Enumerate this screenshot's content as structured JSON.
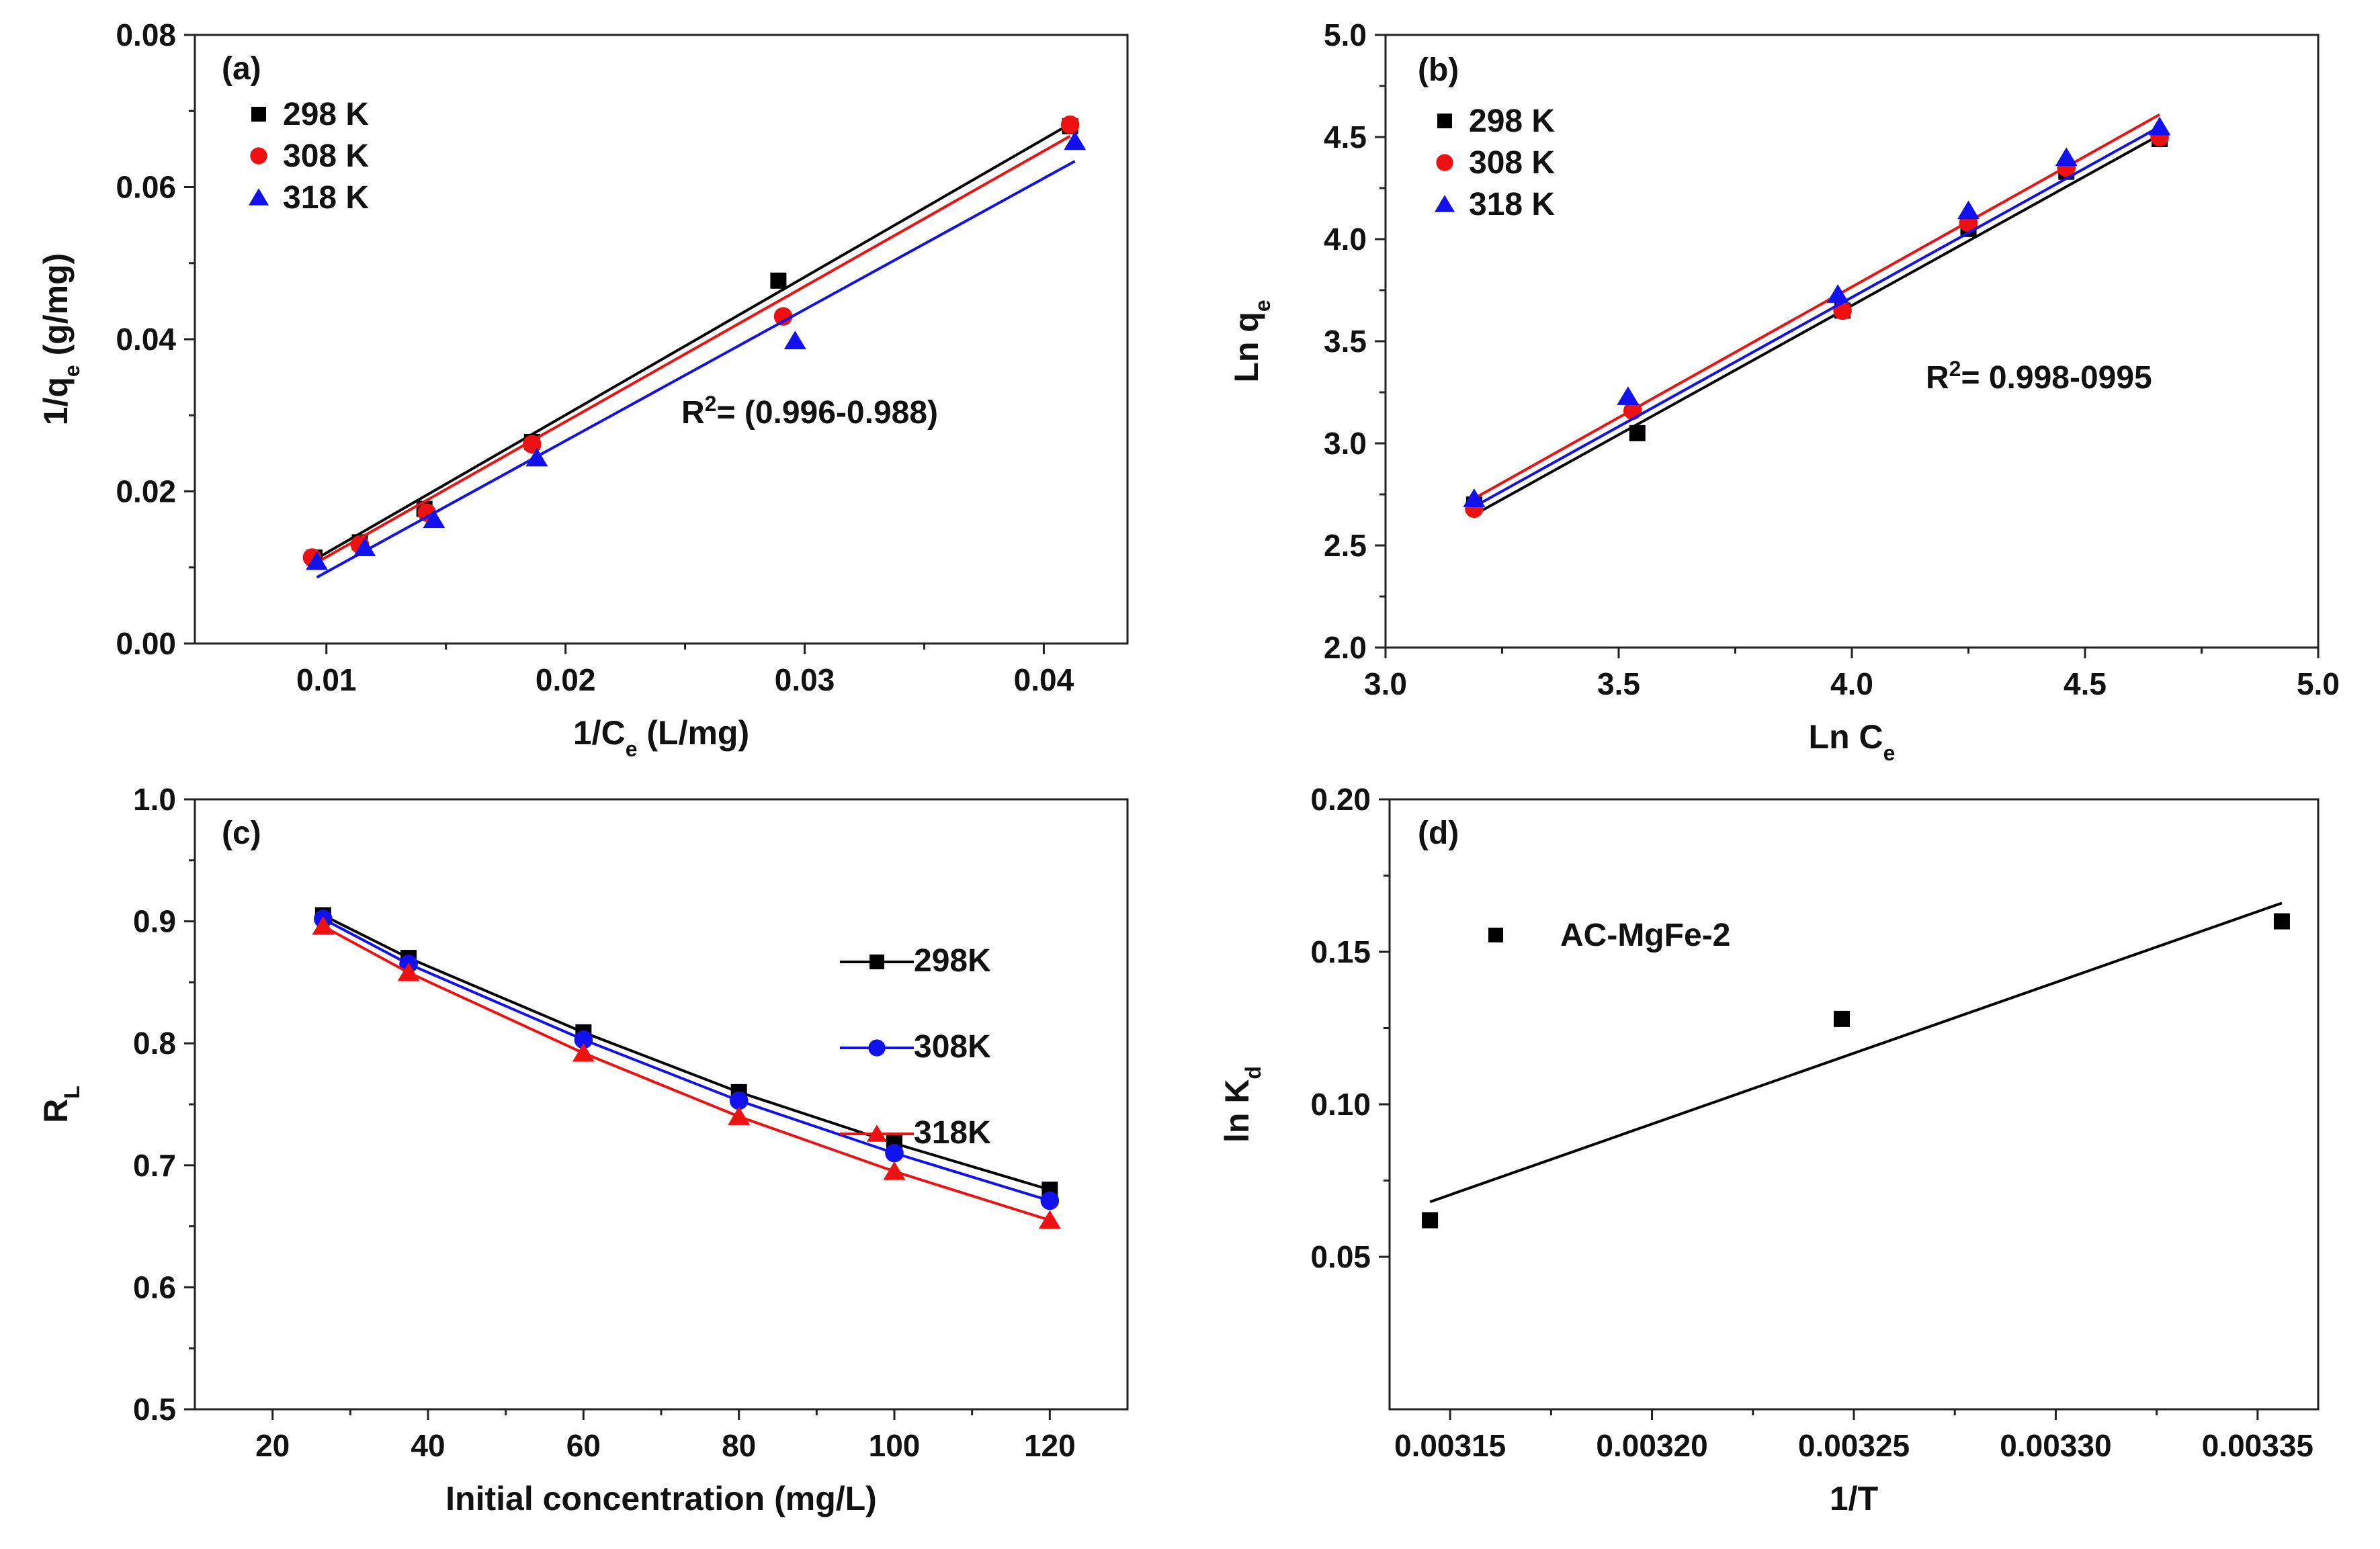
{
  "chart_data": [
    {
      "panel": "(a)",
      "type": "scatter",
      "xlabel": "1/C",
      "xlabel_sub": "e",
      "xlabel_rest": " (L/mg)",
      "ylabel": "1/q",
      "ylabel_sub": "e",
      "ylabel_rest": " (g/mg)",
      "xlim": [
        0.0045,
        0.0435
      ],
      "ylim": [
        0.0,
        0.08
      ],
      "xticks": [
        0.01,
        0.02,
        0.03,
        0.04
      ],
      "xtick_labels": [
        "0.01",
        "0.02",
        "0.03",
        "0.04"
      ],
      "yticks": [
        0.0,
        0.02,
        0.04,
        0.06,
        0.08
      ],
      "ytick_labels": [
        "0.00",
        "0.02",
        "0.04",
        "0.06",
        "0.08"
      ],
      "legend_position": "top-left",
      "annotation": {
        "prefix": "R",
        "sup": "2",
        "rest": "= (0.996-0.988)"
      },
      "series": [
        {
          "name": "298 K",
          "marker": "square",
          "color": "#000000",
          "x": [
            0.0095,
            0.0114,
            0.0141,
            0.0186,
            0.0289,
            0.0411
          ],
          "y": [
            0.0113,
            0.0133,
            0.0177,
            0.0265,
            0.0477,
            0.068
          ],
          "fit": [
            [
              0.0095,
              0.011
            ],
            [
              0.0411,
              0.0683
            ]
          ]
        },
        {
          "name": "308 K",
          "marker": "circle",
          "color": "#ee1111",
          "x": [
            0.0094,
            0.0114,
            0.0142,
            0.0186,
            0.0291,
            0.0411
          ],
          "y": [
            0.0113,
            0.013,
            0.0172,
            0.0262,
            0.043,
            0.0682
          ],
          "fit": [
            [
              0.0094,
              0.0103
            ],
            [
              0.0411,
              0.0667
            ]
          ]
        },
        {
          "name": "318 K",
          "marker": "triangle",
          "color": "#1111ee",
          "x": [
            0.0096,
            0.0116,
            0.0145,
            0.0188,
            0.0296,
            0.0413
          ],
          "y": [
            0.0108,
            0.0126,
            0.0163,
            0.0244,
            0.0398,
            0.066
          ],
          "fit": [
            [
              0.0096,
              0.0087
            ],
            [
              0.0413,
              0.0634
            ]
          ]
        }
      ]
    },
    {
      "panel": "(b)",
      "type": "scatter",
      "xlabel": "Ln C",
      "xlabel_sub": "e",
      "xlabel_rest": "",
      "ylabel": "Ln q",
      "ylabel_sub": "e",
      "ylabel_rest": "",
      "xlim": [
        3.0,
        5.0
      ],
      "ylim": [
        2.0,
        5.0
      ],
      "xticks": [
        3.0,
        3.5,
        4.0,
        4.5,
        5.0
      ],
      "xtick_labels": [
        "3.0",
        "3.5",
        "4.0",
        "4.5",
        "5.0"
      ],
      "yticks": [
        2.0,
        2.5,
        3.0,
        3.5,
        4.0,
        4.5,
        5.0
      ],
      "ytick_labels": [
        "2.0",
        "2.5",
        "3.0",
        "3.5",
        "4.0",
        "4.5",
        "5.0"
      ],
      "legend_position": "top-left",
      "annotation": {
        "prefix": "R",
        "sup": "2",
        "rest": "= 0.998-0995"
      },
      "series": [
        {
          "name": "298 K",
          "marker": "square",
          "color": "#000000",
          "x": [
            3.19,
            3.54,
            3.98,
            4.25,
            4.46,
            4.66
          ],
          "y": [
            2.7,
            3.05,
            3.65,
            4.05,
            4.33,
            4.49
          ],
          "fit": [
            [
              3.19,
              2.65
            ],
            [
              4.66,
              4.51
            ]
          ]
        },
        {
          "name": "308 K",
          "marker": "circle",
          "color": "#ee1111",
          "x": [
            3.19,
            3.53,
            3.98,
            4.25,
            4.46,
            4.66
          ],
          "y": [
            2.68,
            3.16,
            3.65,
            4.08,
            4.35,
            4.5
          ],
          "fit": [
            [
              3.19,
              2.73
            ],
            [
              4.66,
              4.61
            ]
          ]
        },
        {
          "name": "318 K",
          "marker": "triangle",
          "color": "#1111ee",
          "x": [
            3.19,
            3.52,
            3.97,
            4.25,
            4.46,
            4.66
          ],
          "y": [
            2.73,
            3.23,
            3.73,
            4.14,
            4.4,
            4.55
          ],
          "fit": [
            [
              3.19,
              2.69
            ],
            [
              4.66,
              4.55
            ]
          ]
        }
      ]
    },
    {
      "panel": "(c)",
      "type": "line",
      "xlabel": "Initial concentration (mg/L)",
      "xlabel_sub": "",
      "xlabel_rest": "",
      "ylabel": "R",
      "ylabel_sub": "L",
      "ylabel_rest": "",
      "xlim": [
        10,
        130
      ],
      "ylim": [
        0.5,
        1.0
      ],
      "xticks": [
        20,
        40,
        60,
        80,
        100,
        120
      ],
      "xtick_labels": [
        "20",
        "40",
        "60",
        "80",
        "100",
        "120"
      ],
      "yticks": [
        0.5,
        0.6,
        0.7,
        0.8,
        0.9,
        1.0
      ],
      "ytick_labels": [
        "0.5",
        "0.6",
        "0.7",
        "0.8",
        "0.9",
        "1.0"
      ],
      "legend_position": "right",
      "series": [
        {
          "name": "298K",
          "marker": "square",
          "color": "#000000",
          "x": [
            26.5,
            37.5,
            60,
            80,
            100,
            120
          ],
          "y": [
            0.905,
            0.87,
            0.809,
            0.76,
            0.718,
            0.68
          ]
        },
        {
          "name": "308K",
          "marker": "circle",
          "color": "#1111ee",
          "x": [
            26.5,
            37.5,
            60,
            80,
            100,
            120
          ],
          "y": [
            0.902,
            0.865,
            0.803,
            0.753,
            0.71,
            0.671
          ]
        },
        {
          "name": "318K",
          "marker": "triangle",
          "color": "#ee1111",
          "x": [
            26.5,
            37.5,
            60,
            80,
            100,
            120
          ],
          "y": [
            0.896,
            0.858,
            0.792,
            0.74,
            0.695,
            0.655
          ]
        }
      ]
    },
    {
      "panel": "(d)",
      "type": "scatter",
      "xlabel": "1/T",
      "xlabel_sub": "",
      "xlabel_rest": "",
      "ylabel": "ln K",
      "ylabel_sub": "d",
      "ylabel_rest": "",
      "xlim": [
        0.003135,
        0.003365
      ],
      "ylim": [
        0.0,
        0.2
      ],
      "xticks": [
        0.00315,
        0.0032,
        0.00325,
        0.0033,
        0.00335
      ],
      "xtick_labels": [
        "0.00315",
        "0.00320",
        "0.00325",
        "0.00330",
        "0.00335"
      ],
      "yticks": [
        0.05,
        0.1,
        0.15,
        0.2
      ],
      "ytick_labels": [
        "0.05",
        "0.10",
        "0.15",
        "0.20"
      ],
      "legend_position": "top-left",
      "series": [
        {
          "name": "AC-MgFe-2",
          "marker": "square",
          "color": "#000000",
          "x": [
            0.003145,
            0.003247,
            0.003356
          ],
          "y": [
            0.062,
            0.128,
            0.16
          ],
          "fit": [
            [
              0.003145,
              0.068
            ],
            [
              0.003356,
              0.166
            ]
          ]
        }
      ]
    }
  ]
}
